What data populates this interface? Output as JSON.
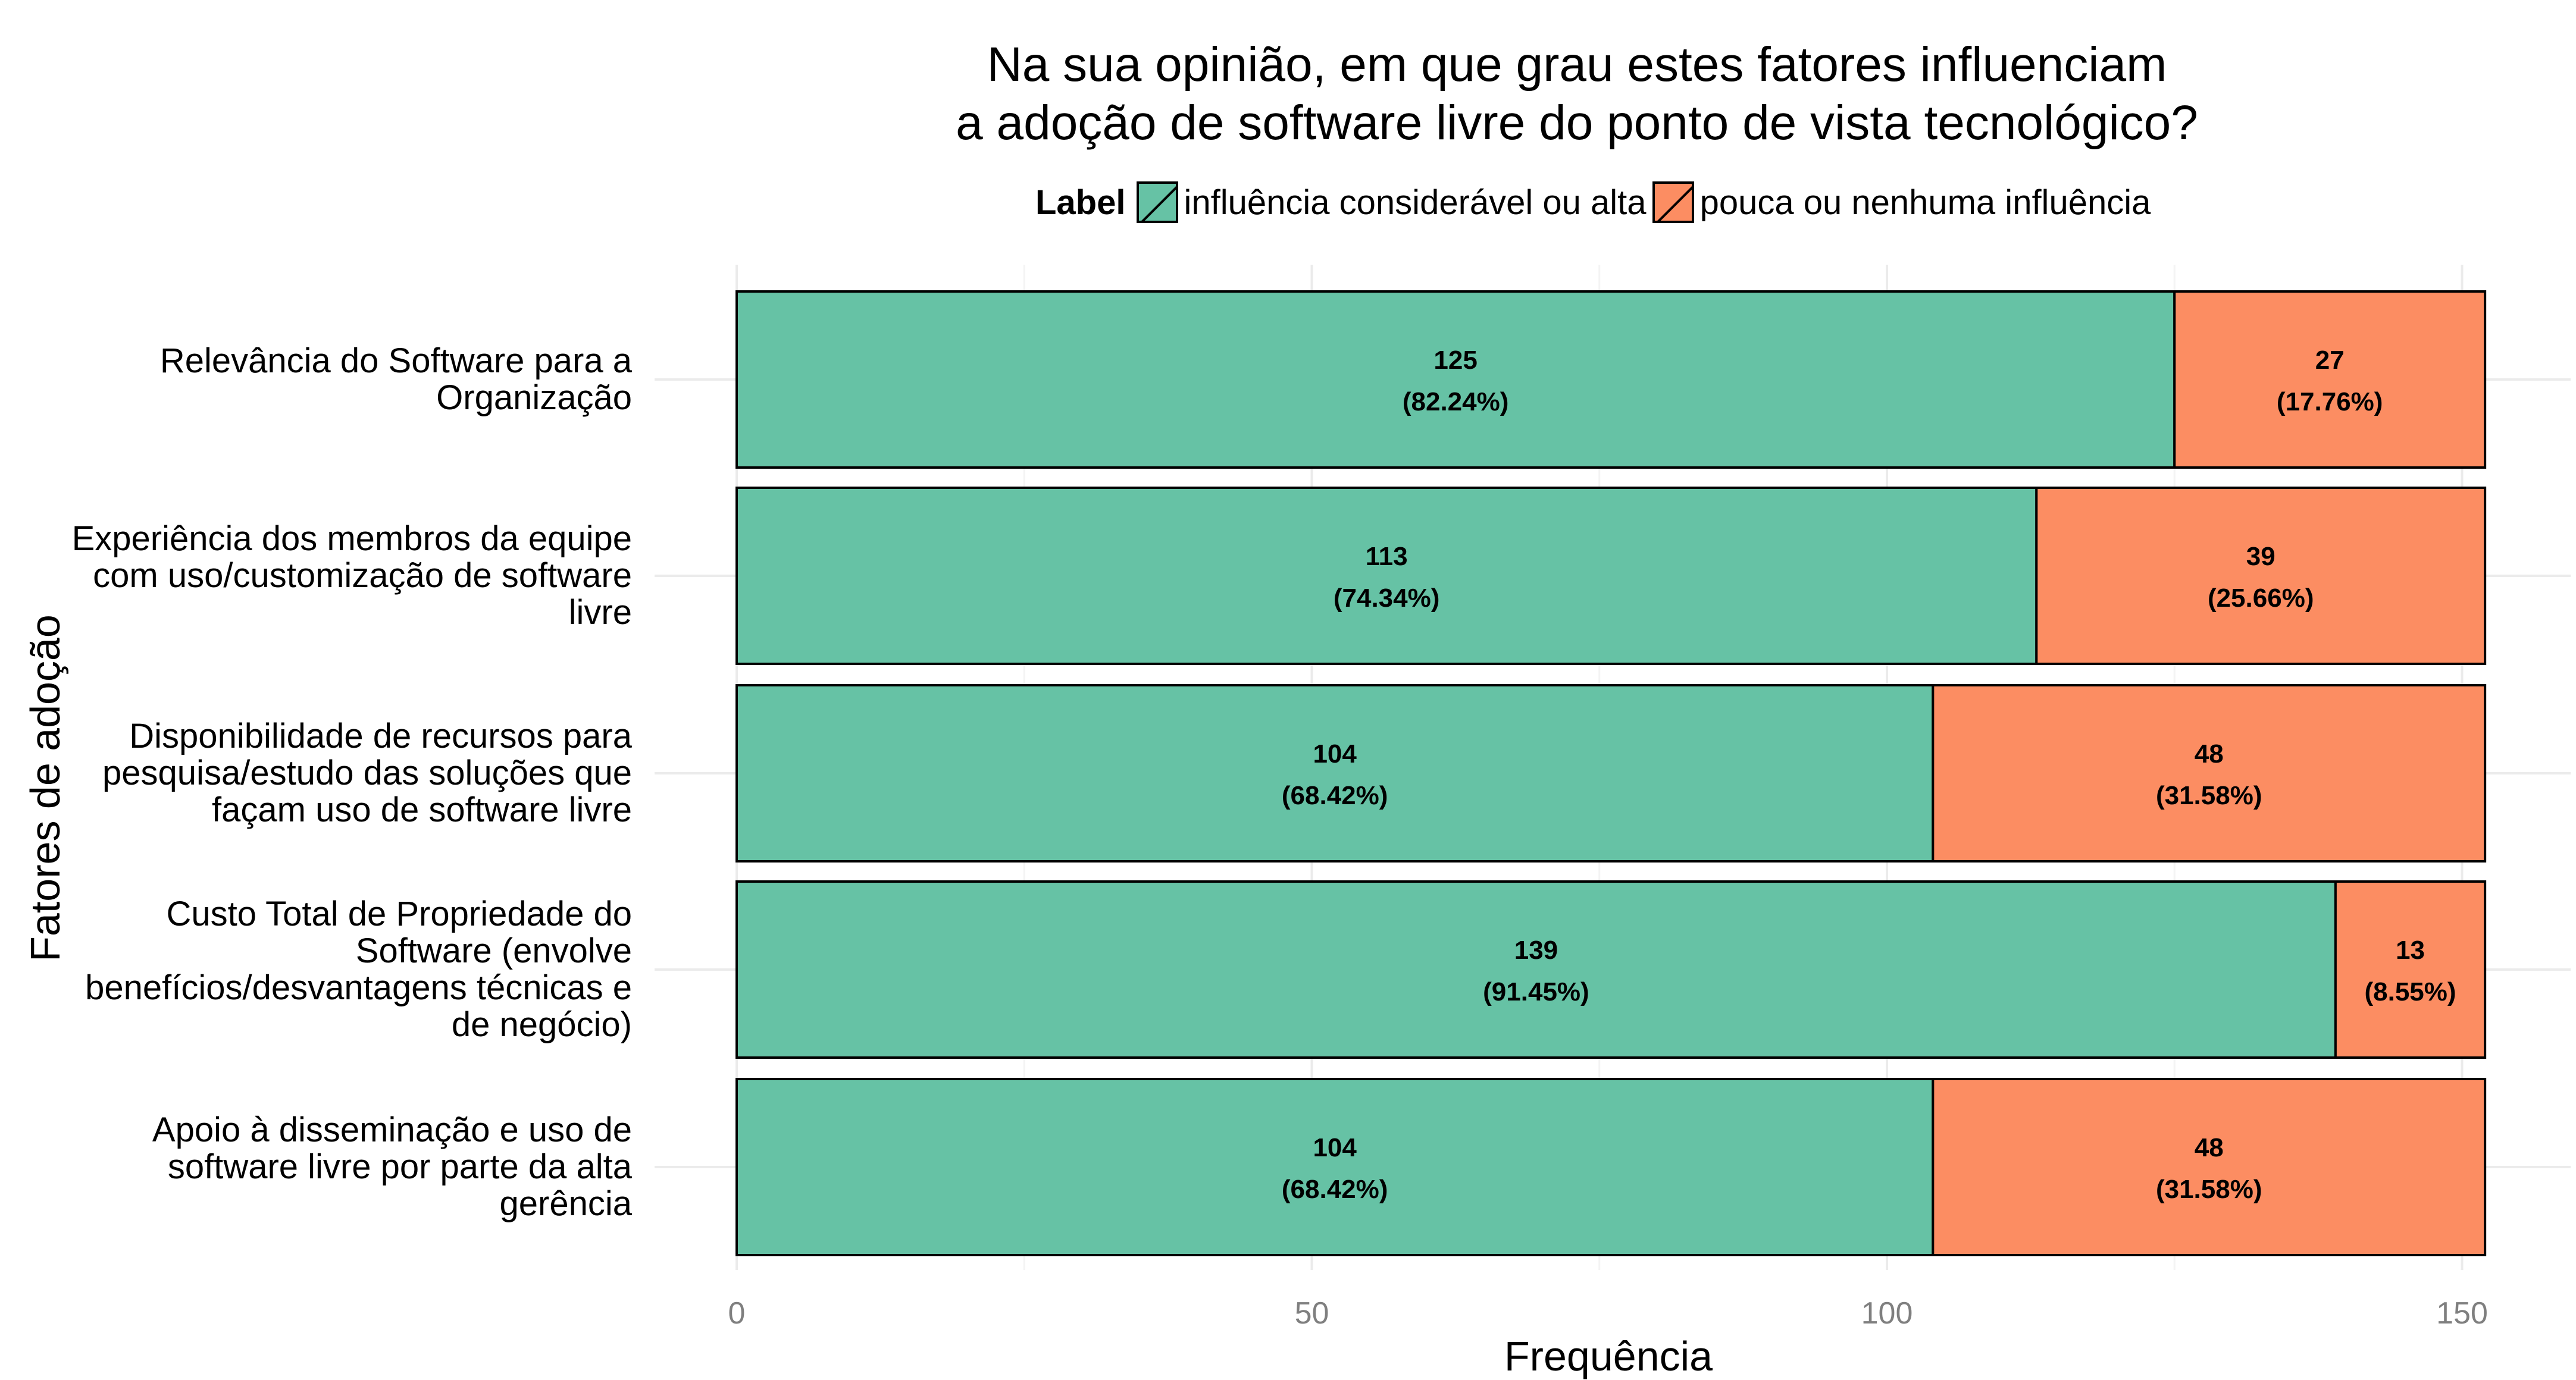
{
  "chart_data": {
    "type": "bar",
    "orientation": "horizontal",
    "stacked": true,
    "title": [
      "Na sua opinião, em que grau estes fatores influenciam",
      "a adoção de software livre do ponto de vista tecnológico?"
    ],
    "xlabel": "Frequência",
    "ylabel": "Fatores de adoção",
    "xlim": [
      0,
      152
    ],
    "xticks": [
      0,
      50,
      100,
      150
    ],
    "grid": true,
    "legend": {
      "title": "Label",
      "position": "top",
      "entries": [
        "influência considerável ou alta",
        "pouca ou nenhuma influência"
      ]
    },
    "categories": [
      [
        "Relevância do Software para a",
        "Organização"
      ],
      [
        "Experiência dos membros da equipe",
        "com uso/customização de software",
        "livre"
      ],
      [
        "Disponibilidade de recursos para",
        "pesquisa/estudo das soluções que",
        "façam uso de software livre"
      ],
      [
        "Custo Total de Propriedade do",
        "Software (envolve",
        "benefícios/desvantagens técnicas e",
        "de negócio)"
      ],
      [
        "Apoio à disseminação e uso de",
        "software livre por parte da alta",
        "gerência"
      ]
    ],
    "series": [
      {
        "name": "influência considerável ou alta",
        "color": "#66c2a5",
        "values": [
          125,
          113,
          104,
          139,
          104
        ],
        "labels": [
          "(82.24%)",
          "(74.34%)",
          "(68.42%)",
          "(91.45%)",
          "(68.42%)"
        ]
      },
      {
        "name": "pouca ou nenhuma influência",
        "color": "#fc8d62",
        "values": [
          27,
          39,
          48,
          13,
          48
        ],
        "labels": [
          "(17.76%)",
          "(25.66%)",
          "(31.58%)",
          "(8.55%)",
          "(31.58%)"
        ]
      }
    ]
  }
}
